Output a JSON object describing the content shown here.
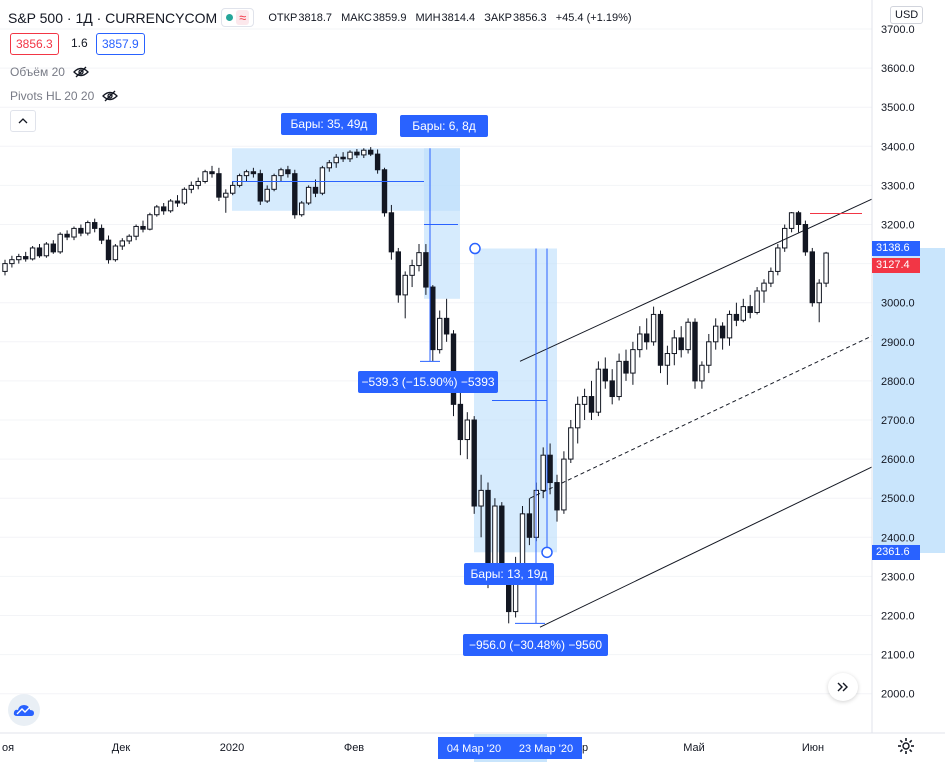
{
  "header": {
    "symbol": "S&P 500 · 1Д · CURRENCYCOM",
    "approx_symbol": "≈",
    "ohlc": {
      "open_label": "ОТКР",
      "open": "3818.7",
      "high_label": "МАКС",
      "high": "3859.9",
      "low_label": "МИН",
      "low": "3814.4",
      "close_label": "ЗАКР",
      "close": "3856.3",
      "change": "+45.4 (+1.19%)"
    },
    "bid": "3856.3",
    "spread": "1.6",
    "ask": "3857.9"
  },
  "indicators": [
    {
      "label": "Объём 20"
    },
    {
      "label": "Pivots HL 20 20"
    }
  ],
  "currency": "USD",
  "price_axis": {
    "labels": [
      "3700.0",
      "3600.0",
      "3500.0",
      "3400.0",
      "3300.0",
      "3200.0",
      "3100.0",
      "3000.0",
      "2900.0",
      "2800.0",
      "2700.0",
      "2600.0",
      "2500.0",
      "2400.0",
      "2300.0",
      "2200.0",
      "2100.0",
      "2000.0"
    ],
    "tags": [
      {
        "label": "3138.6",
        "color": "#2962ff"
      },
      {
        "label": "3127.4",
        "color": "#f23645"
      },
      {
        "label": "2361.6",
        "color": "#2962ff"
      }
    ]
  },
  "time_axis": {
    "labels": [
      "оя",
      "Дек",
      "2020",
      "Фев",
      "р",
      "Май",
      "Июн"
    ],
    "highlight_labels": [
      "04 Мар '20",
      "23 Мар '20"
    ]
  },
  "measure_labels": {
    "bars_top_left": "Бары: 35, 49д",
    "bars_top_right": "Бары: 6, 8д",
    "change_first": "−539.3 (−15.90%) −5393",
    "bars_bottom": "Бары: 13, 19д",
    "change_second": "−956.0 (−30.48%) −9560"
  },
  "colors": {
    "accent": "#2962ff",
    "measure_fill": "#bbdefb",
    "down": "#f23645",
    "bid": "#f23645",
    "ask": "#2962ff"
  },
  "icons": {
    "eye": "eye-crossed-icon",
    "collapse": "chevron-up-icon",
    "scroll": "double-chevron-right-icon",
    "logo": "tradingview-cloud-icon",
    "settings": "gear-icon"
  },
  "chart_data": {
    "type": "candlestick",
    "ylim": [
      1900,
      3750
    ],
    "ohlc": [
      [
        3080,
        3110,
        3070,
        3100
      ],
      [
        3100,
        3120,
        3090,
        3110
      ],
      [
        3110,
        3125,
        3100,
        3118
      ],
      [
        3118,
        3130,
        3105,
        3112
      ],
      [
        3112,
        3145,
        3108,
        3140
      ],
      [
        3140,
        3150,
        3115,
        3120
      ],
      [
        3120,
        3155,
        3115,
        3150
      ],
      [
        3150,
        3160,
        3125,
        3130
      ],
      [
        3130,
        3180,
        3125,
        3175
      ],
      [
        3175,
        3185,
        3160,
        3168
      ],
      [
        3168,
        3195,
        3160,
        3190
      ],
      [
        3190,
        3200,
        3170,
        3178
      ],
      [
        3178,
        3210,
        3172,
        3205
      ],
      [
        3205,
        3215,
        3180,
        3190
      ],
      [
        3190,
        3200,
        3150,
        3160
      ],
      [
        3160,
        3172,
        3100,
        3110
      ],
      [
        3110,
        3150,
        3105,
        3145
      ],
      [
        3145,
        3165,
        3135,
        3158
      ],
      [
        3158,
        3175,
        3150,
        3170
      ],
      [
        3170,
        3200,
        3160,
        3195
      ],
      [
        3195,
        3210,
        3180,
        3188
      ],
      [
        3188,
        3230,
        3185,
        3225
      ],
      [
        3225,
        3250,
        3220,
        3245
      ],
      [
        3245,
        3255,
        3225,
        3235
      ],
      [
        3235,
        3265,
        3230,
        3260
      ],
      [
        3260,
        3275,
        3245,
        3255
      ],
      [
        3255,
        3295,
        3250,
        3290
      ],
      [
        3290,
        3310,
        3280,
        3300
      ],
      [
        3300,
        3320,
        3290,
        3310
      ],
      [
        3310,
        3340,
        3305,
        3335
      ],
      [
        3335,
        3350,
        3320,
        3330
      ],
      [
        3330,
        3345,
        3260,
        3270
      ],
      [
        3270,
        3290,
        3230,
        3280
      ],
      [
        3280,
        3310,
        3275,
        3300
      ],
      [
        3300,
        3330,
        3295,
        3325
      ],
      [
        3325,
        3340,
        3310,
        3335
      ],
      [
        3335,
        3345,
        3320,
        3330
      ],
      [
        3330,
        3340,
        3250,
        3260
      ],
      [
        3260,
        3300,
        3255,
        3290
      ],
      [
        3290,
        3330,
        3285,
        3325
      ],
      [
        3325,
        3345,
        3310,
        3340
      ],
      [
        3340,
        3350,
        3320,
        3330
      ],
      [
        3330,
        3340,
        3215,
        3225
      ],
      [
        3225,
        3260,
        3220,
        3255
      ],
      [
        3255,
        3300,
        3250,
        3295
      ],
      [
        3295,
        3315,
        3270,
        3280
      ],
      [
        3280,
        3350,
        3275,
        3345
      ],
      [
        3345,
        3365,
        3335,
        3358
      ],
      [
        3358,
        3380,
        3345,
        3372
      ],
      [
        3372,
        3385,
        3360,
        3368
      ],
      [
        3368,
        3390,
        3360,
        3385
      ],
      [
        3385,
        3393,
        3370,
        3378
      ],
      [
        3378,
        3395,
        3370,
        3390
      ],
      [
        3390,
        3398,
        3375,
        3380
      ],
      [
        3380,
        3392,
        3330,
        3340
      ],
      [
        3340,
        3345,
        3220,
        3230
      ],
      [
        3230,
        3250,
        3110,
        3130
      ],
      [
        3130,
        3140,
        3000,
        3020
      ],
      [
        3020,
        3080,
        2960,
        3070
      ],
      [
        3070,
        3110,
        3040,
        3095
      ],
      [
        3095,
        3150,
        3080,
        3128
      ],
      [
        3128,
        3150,
        3020,
        3040
      ],
      [
        3040,
        3045,
        2850,
        2880
      ],
      [
        2880,
        2980,
        2870,
        2960
      ],
      [
        2960,
        3010,
        2900,
        2920
      ],
      [
        2920,
        2930,
        2710,
        2740
      ],
      [
        2740,
        2780,
        2610,
        2650
      ],
      [
        2650,
        2720,
        2600,
        2700
      ],
      [
        2700,
        2710,
        2460,
        2480
      ],
      [
        2480,
        2560,
        2400,
        2520
      ],
      [
        2520,
        2540,
        2270,
        2300
      ],
      [
        2300,
        2500,
        2290,
        2480
      ],
      [
        2480,
        2490,
        2280,
        2310
      ],
      [
        2310,
        2320,
        2180,
        2210
      ],
      [
        2210,
        2350,
        2195,
        2330
      ],
      [
        2330,
        2480,
        2320,
        2460
      ],
      [
        2460,
        2500,
        2380,
        2400
      ],
      [
        2400,
        2540,
        2390,
        2520
      ],
      [
        2520,
        2630,
        2500,
        2610
      ],
      [
        2610,
        2640,
        2510,
        2540
      ],
      [
        2540,
        2560,
        2440,
        2470
      ],
      [
        2470,
        2620,
        2460,
        2600
      ],
      [
        2600,
        2700,
        2590,
        2680
      ],
      [
        2680,
        2760,
        2640,
        2740
      ],
      [
        2740,
        2780,
        2700,
        2760
      ],
      [
        2760,
        2800,
        2700,
        2720
      ],
      [
        2720,
        2850,
        2710,
        2830
      ],
      [
        2830,
        2860,
        2780,
        2800
      ],
      [
        2800,
        2830,
        2740,
        2760
      ],
      [
        2760,
        2870,
        2750,
        2850
      ],
      [
        2850,
        2880,
        2800,
        2820
      ],
      [
        2820,
        2900,
        2790,
        2880
      ],
      [
        2880,
        2940,
        2860,
        2920
      ],
      [
        2920,
        2960,
        2880,
        2900
      ],
      [
        2900,
        2990,
        2890,
        2970
      ],
      [
        2970,
        2980,
        2820,
        2840
      ],
      [
        2840,
        2890,
        2790,
        2870
      ],
      [
        2870,
        2930,
        2840,
        2910
      ],
      [
        2910,
        2940,
        2860,
        2880
      ],
      [
        2880,
        2960,
        2870,
        2950
      ],
      [
        2950,
        2960,
        2780,
        2800
      ],
      [
        2800,
        2850,
        2780,
        2840
      ],
      [
        2840,
        2920,
        2820,
        2900
      ],
      [
        2900,
        2960,
        2880,
        2940
      ],
      [
        2940,
        2950,
        2880,
        2910
      ],
      [
        2910,
        2980,
        2890,
        2970
      ],
      [
        2970,
        3000,
        2940,
        2955
      ],
      [
        2955,
        3010,
        2950,
        2990
      ],
      [
        2990,
        3020,
        2960,
        2975
      ],
      [
        2975,
        3040,
        2970,
        3030
      ],
      [
        3030,
        3060,
        3000,
        3050
      ],
      [
        3050,
        3090,
        3040,
        3080
      ],
      [
        3080,
        3150,
        3070,
        3140
      ],
      [
        3140,
        3200,
        3130,
        3190
      ],
      [
        3190,
        3232,
        3180,
        3230
      ],
      [
        3230,
        3235,
        3180,
        3200
      ],
      [
        3200,
        3210,
        3120,
        3130
      ],
      [
        3130,
        3140,
        2990,
        3000
      ],
      [
        3000,
        3060,
        2950,
        3050
      ],
      [
        3050,
        3130,
        3040,
        3127
      ]
    ]
  }
}
